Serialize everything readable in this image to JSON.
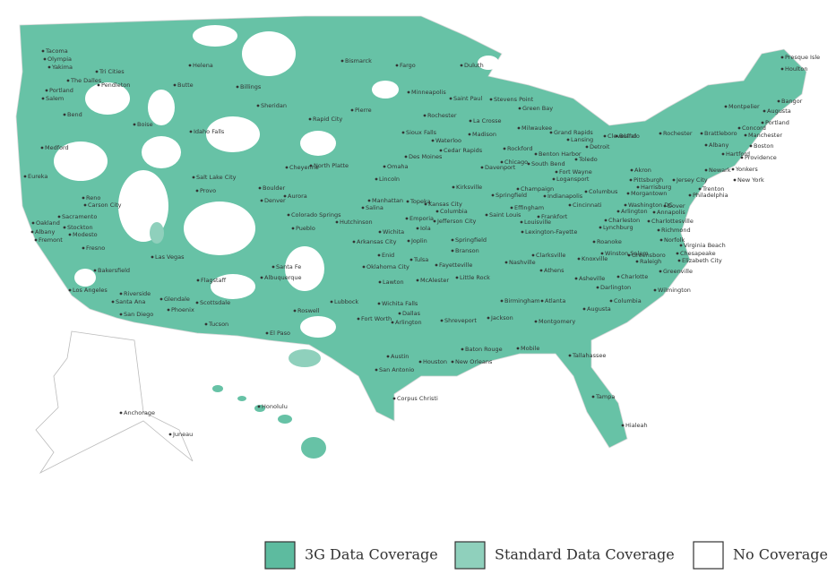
{
  "legend": [
    {
      "label": "3G Data Coverage",
      "color": "#5dbb9f"
    },
    {
      "label": "Standard Data Coverage",
      "color": "#8fd0bc"
    },
    {
      "label": "No Coverage",
      "color": "#ffffff"
    }
  ],
  "cities": [
    "Tacoma",
    "Olympia",
    "Yakima",
    "Tri Cities",
    "The Dalles",
    "Pendleton",
    "Portland",
    "Salem",
    "Bend",
    "Boise",
    "Idaho Falls",
    "Helena",
    "Butte",
    "Billings",
    "Sheridan",
    "Bismarck",
    "Fargo",
    "Duluth",
    "Presque Isle",
    "Houlton",
    "Medford",
    "Eureka",
    "Salt Lake City",
    "Provo",
    "Reno",
    "Carson City",
    "Sacramento",
    "Oakland",
    "Stockton",
    "Albany",
    "Modesto",
    "Fremont",
    "Fresno",
    "Bakersfield",
    "Las Vegas",
    "Los Angeles",
    "Riverside",
    "Santa Ana",
    "San Diego",
    "Glendale",
    "Phoenix",
    "Scottsdale",
    "Tucson",
    "Flagstaff",
    "Santa Fe",
    "Albuquerque",
    "Roswell",
    "El Paso",
    "Cheyenne",
    "Boulder",
    "Denver",
    "Aurora",
    "Colorado Springs",
    "Pueblo",
    "North Platte",
    "Rapid City",
    "Pierre",
    "Sioux Falls",
    "Minneapolis",
    "Saint Paul",
    "Rochester",
    "La Crosse",
    "Stevens Point",
    "Green Bay",
    "Madison",
    "Milwaukee",
    "Waterloo",
    "Cedar Rapids",
    "Des Moines",
    "Omaha",
    "Lincoln",
    "Davenport",
    "Rockford",
    "Chicago",
    "South Bend",
    "Benton Harbor",
    "Grand Rapids",
    "Lansing",
    "Detroit",
    "Toledo",
    "Cleveland",
    "Fort Wayne",
    "Akron",
    "Buffalo",
    "Rochester",
    "Manhattan",
    "Topeka",
    "Kansas City",
    "Salina",
    "Emporia",
    "Wichita",
    "Hutchinson",
    "Iola",
    "Columbia",
    "Jefferson City",
    "Kirksville",
    "Saint Louis",
    "Springfield",
    "Champaign",
    "Effingham",
    "Indianapolis",
    "Logansport",
    "Columbus",
    "Cincinnati",
    "Frankfort",
    "Louisville",
    "Lexington-Fayette",
    "Arkansas City",
    "Enid",
    "Joplin",
    "Springfield",
    "Branson",
    "Tulsa",
    "Fayetteville",
    "Oklahoma City",
    "Lawton",
    "McAlester",
    "Little Rock",
    "Lubbock",
    "Wichita Falls",
    "Dallas",
    "Fort Worth",
    "Arlington",
    "Shreveport",
    "Jackson",
    "Clarksville",
    "Nashville",
    "Knoxville",
    "Athens",
    "Asheville",
    "Birmingham",
    "Atlanta",
    "Montgomery",
    "Austin",
    "Houston",
    "San Antonio",
    "Corpus Christi",
    "Baton Rouge",
    "New Orleans",
    "Mobile",
    "Tallahassee",
    "Tampa",
    "Hialeah",
    "Augusta",
    "Columbia",
    "Darlington",
    "Charlotte",
    "Greensboro",
    "Winston Salem",
    "Raleigh",
    "Roanoke",
    "Lynchburg",
    "Charleston",
    "Charlottesville",
    "Richmond",
    "Norfolk",
    "Virginia Beach",
    "Chesapeake",
    "Elizabeth City",
    "Greenville",
    "Wilmington",
    "Washington DC",
    "Arlington",
    "Annapolis",
    "Dover",
    "Morgantown",
    "Pittsburgh",
    "Harrisburg",
    "Philadelphia",
    "Trenton",
    "Jersey City",
    "Newark",
    "Yonkers",
    "New York",
    "Albany",
    "Hartford",
    "Brattleboro",
    "Concord",
    "Manchester",
    "Boston",
    "Providence",
    "Portland",
    "Augusta",
    "Bangor",
    "Montpelier",
    "Anchorage",
    "Juneau",
    "Honolulu"
  ]
}
